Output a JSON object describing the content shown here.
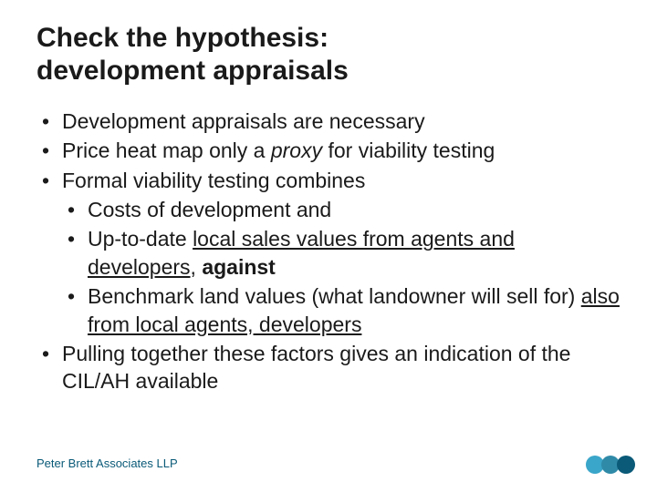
{
  "title_line1": "Check the hypothesis:",
  "title_line2": "development appraisals",
  "bullets": {
    "b1": "Development appraisals are necessary",
    "b2_pre": "Price heat map only a ",
    "b2_italic": "proxy",
    "b2_post": " for viability testing",
    "b3": "Formal viability testing combines",
    "b3a": "Costs of development and",
    "b3b_pre": "Up-to-date ",
    "b3b_under": "local sales values from agents and developers",
    "b3b_post": ", ",
    "b3b_bold": "against",
    "b3c_pre": "Benchmark land values (what landowner will sell for) ",
    "b3c_under": "also from local agents, developers",
    "b4": "Pulling together these factors gives an indication of the CIL/AH available"
  },
  "footer": "Peter Brett Associates LLP",
  "dots": {
    "c1": "#3aa6c9",
    "c2": "#2f8aa8",
    "c3": "#0a5a78"
  },
  "colors": {
    "text": "#1a1a1a",
    "footer": "#0a5a78",
    "bg": "#ffffff"
  }
}
